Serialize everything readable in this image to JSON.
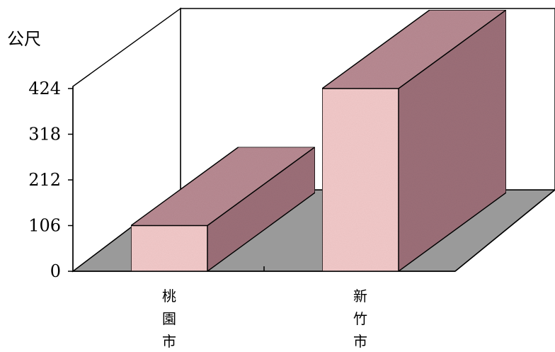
{
  "chart_data": {
    "type": "bar",
    "ylabel": "公尺",
    "categories": [
      "桃園市",
      "新竹市"
    ],
    "values": [
      106,
      424
    ],
    "yticks": [
      0,
      106,
      212,
      318,
      424
    ],
    "ylim": [
      0,
      424
    ],
    "grid": false,
    "legend": "none",
    "colors": {
      "front": "#f2c9c9",
      "side": "#9c6f78",
      "top": "#b88a92",
      "floor": "#9a9a9a",
      "wall": "#ffffff",
      "edge": "#000000"
    }
  }
}
